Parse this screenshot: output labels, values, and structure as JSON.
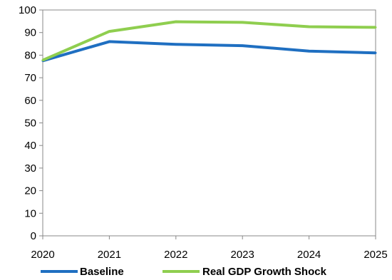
{
  "chart_data": {
    "type": "line",
    "title": "",
    "xlabel": "",
    "ylabel": "",
    "x": [
      2020,
      2021,
      2022,
      2023,
      2024,
      2025
    ],
    "x_tick_labels": [
      "2020",
      "2021",
      "2022",
      "2023",
      "2024",
      "2025"
    ],
    "ylim": [
      0,
      100
    ],
    "y_ticks": [
      0,
      10,
      20,
      30,
      40,
      50,
      60,
      70,
      80,
      90,
      100
    ],
    "grid": false,
    "legend_position": "bottom",
    "series": [
      {
        "name": "Baseline",
        "color": "#1f6fc1",
        "values": [
          77.5,
          86.0,
          84.8,
          84.2,
          81.8,
          81.0
        ]
      },
      {
        "name": "Real GDP Growth Shock",
        "color": "#8fce4f",
        "values": [
          77.8,
          90.5,
          94.8,
          94.5,
          92.6,
          92.3
        ]
      }
    ]
  }
}
